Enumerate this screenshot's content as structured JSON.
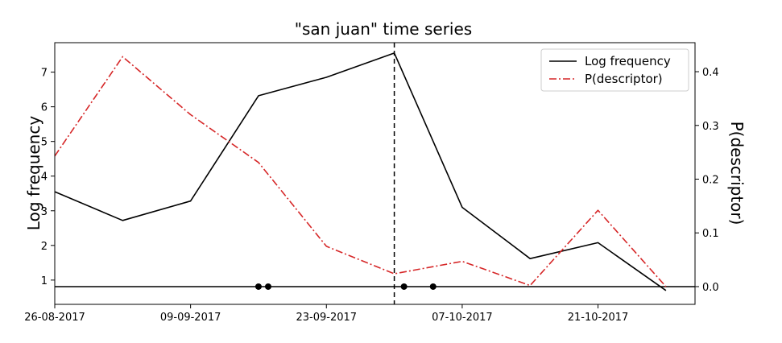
{
  "chart_data": {
    "type": "line",
    "title": "\"san juan\" time series",
    "ylabel": "Log frequency",
    "y2label": "P(descriptor)",
    "xlim": [
      "2017-08-26",
      "2017-10-31"
    ],
    "ylim": [
      0.3,
      7.85
    ],
    "y2lim": [
      -0.033,
      0.454
    ],
    "x_ticks": [
      {
        "x": "2017-08-26",
        "label": "26-08-2017"
      },
      {
        "x": "2017-09-09",
        "label": "09-09-2017"
      },
      {
        "x": "2017-09-23",
        "label": "23-09-2017"
      },
      {
        "x": "2017-10-07",
        "label": "07-10-2017"
      },
      {
        "x": "2017-10-21",
        "label": "21-10-2017"
      }
    ],
    "y_ticks": [
      1,
      2,
      3,
      4,
      5,
      6,
      7
    ],
    "y2_ticks": [
      {
        "v": 0.0,
        "label": "0.0"
      },
      {
        "v": 0.1,
        "label": "0.1"
      },
      {
        "v": 0.2,
        "label": "0.2"
      },
      {
        "v": 0.3,
        "label": "0.3"
      },
      {
        "v": 0.4,
        "label": "0.4"
      }
    ],
    "x": [
      "2017-08-26",
      "2017-09-02",
      "2017-09-09",
      "2017-09-16",
      "2017-09-23",
      "2017-09-30",
      "2017-10-07",
      "2017-10-14",
      "2017-10-21",
      "2017-10-28"
    ],
    "series": [
      {
        "name": "Log frequency",
        "axis": "left",
        "color": "#000000",
        "style": "solid",
        "values": [
          3.55,
          2.72,
          3.28,
          6.32,
          6.85,
          7.55,
          3.1,
          1.62,
          2.08,
          0.7
        ]
      },
      {
        "name": "P(descriptor)",
        "axis": "right",
        "color": "#d62728",
        "style": "dashdot",
        "values": [
          0.243,
          0.428,
          0.32,
          0.231,
          0.075,
          0.024,
          0.047,
          0.002,
          0.142,
          0.0
        ]
      }
    ],
    "baseline": {
      "axis": "right",
      "value": 0.0,
      "color": "#000000"
    },
    "markers": {
      "axis": "right",
      "value": 0.0,
      "x": [
        "2017-09-16",
        "2017-09-17",
        "2017-10-01",
        "2017-10-04"
      ]
    },
    "vline": {
      "x": "2017-09-30",
      "style": "dashed",
      "color": "#000000"
    },
    "legend": {
      "position": "top-right",
      "entries": [
        "Log frequency",
        "P(descriptor)"
      ]
    },
    "grid": false
  }
}
